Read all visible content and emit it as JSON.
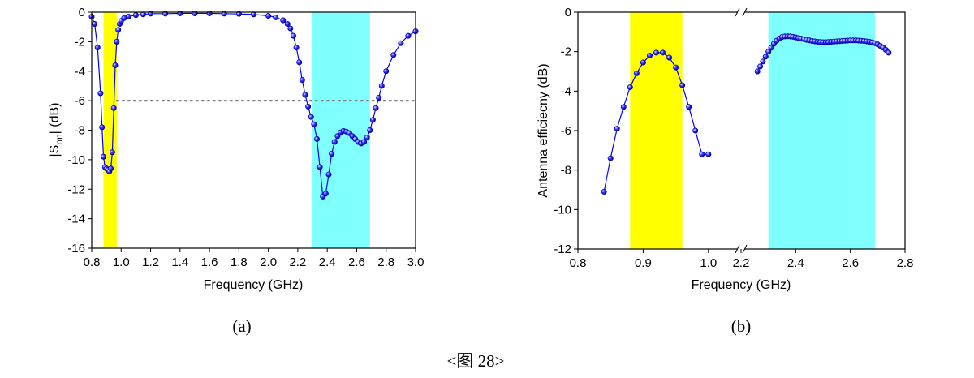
{
  "figure_caption": "<图 28>",
  "chart_data": [
    {
      "id": "a",
      "type": "scatter",
      "sublabel": "(a)",
      "xlabel": "Frequency (GHz)",
      "ylabel_main": "|S",
      "ylabel_sub": "nn",
      "ylabel_tail": "| (dB)",
      "xlim": [
        0.8,
        3.0
      ],
      "ylim": [
        -16,
        0
      ],
      "xticks": [
        "0.8",
        "1.0",
        "1.2",
        "1.4",
        "1.6",
        "1.8",
        "2.0",
        "2.2",
        "2.4",
        "2.6",
        "2.8",
        "3.0"
      ],
      "yticks": [
        "0",
        "-2",
        "-4",
        "-6",
        "-8",
        "-10",
        "-12",
        "-14",
        "-16"
      ],
      "bands": [
        {
          "from": 0.88,
          "to": 0.97,
          "color": "#ffff00"
        },
        {
          "from": 2.3,
          "to": 2.69,
          "color": "#80ffff"
        }
      ],
      "reference_line": {
        "y": -6,
        "color": "#808080"
      },
      "series_color": "#0000ff",
      "series": [
        {
          "x": [
            0.8,
            0.82,
            0.84,
            0.86,
            0.87,
            0.88,
            0.89,
            0.9,
            0.91,
            0.92,
            0.93,
            0.94,
            0.95,
            0.96,
            0.97,
            0.98,
            0.99,
            1.0,
            1.02,
            1.05,
            1.1,
            1.15,
            1.2,
            1.3,
            1.4,
            1.5,
            1.6,
            1.7,
            1.8,
            1.9,
            2.0,
            2.05,
            2.1,
            2.13,
            2.15,
            2.17,
            2.19,
            2.21,
            2.23,
            2.25,
            2.27,
            2.29,
            2.31,
            2.33,
            2.35,
            2.37,
            2.39,
            2.41,
            2.43,
            2.45,
            2.47,
            2.49,
            2.51,
            2.53,
            2.55,
            2.57,
            2.59,
            2.61,
            2.63,
            2.65,
            2.67,
            2.69,
            2.71,
            2.73,
            2.75,
            2.77,
            2.8,
            2.85,
            2.9,
            2.95,
            3.0
          ],
          "y": [
            -0.3,
            -0.8,
            -2.4,
            -5.5,
            -7.8,
            -9.8,
            -10.5,
            -10.6,
            -10.7,
            -10.8,
            -10.6,
            -9.5,
            -6.5,
            -3.6,
            -2.0,
            -1.2,
            -0.8,
            -0.6,
            -0.4,
            -0.3,
            -0.2,
            -0.15,
            -0.1,
            -0.1,
            -0.08,
            -0.08,
            -0.08,
            -0.1,
            -0.12,
            -0.15,
            -0.25,
            -0.35,
            -0.55,
            -0.8,
            -1.1,
            -1.6,
            -2.4,
            -3.4,
            -4.6,
            -5.6,
            -6.4,
            -7.1,
            -7.6,
            -8.6,
            -10.5,
            -12.5,
            -12.3,
            -11.0,
            -9.6,
            -8.8,
            -8.4,
            -8.15,
            -8.05,
            -8.1,
            -8.2,
            -8.4,
            -8.6,
            -8.8,
            -8.9,
            -8.8,
            -8.5,
            -8.0,
            -7.3,
            -6.5,
            -5.8,
            -5.0,
            -4.0,
            -2.9,
            -2.1,
            -1.6,
            -1.3
          ]
        }
      ]
    },
    {
      "id": "b",
      "type": "scatter",
      "sublabel": "(b)",
      "xlabel": "Frequency (GHz)",
      "ylabel": "Antenna efficiecny (dB)",
      "ylim": [
        -12,
        0
      ],
      "axis_break": true,
      "left_segment": {
        "xlim": [
          0.8,
          1.05
        ],
        "xticks": [
          "0.8",
          "0.9",
          "1.0"
        ]
      },
      "right_segment": {
        "xlim": [
          2.2,
          2.8
        ],
        "xticks": [
          "2.2",
          "2.4",
          "2.6",
          "2.8"
        ]
      },
      "yticks": [
        "0",
        "-2",
        "-4",
        "-6",
        "-8",
        "-10",
        "-12"
      ],
      "bands": [
        {
          "segment": "left",
          "from": 0.88,
          "to": 0.96,
          "color": "#ffff00"
        },
        {
          "segment": "right",
          "from": 2.3,
          "to": 2.69,
          "color": "#80ffff"
        }
      ],
      "series_color": "#0000ff",
      "series": [
        {
          "segment": "left",
          "x": [
            0.84,
            0.85,
            0.86,
            0.87,
            0.88,
            0.89,
            0.9,
            0.91,
            0.92,
            0.93,
            0.94,
            0.95,
            0.96,
            0.97,
            0.98,
            0.99,
            1.0
          ],
          "y": [
            -9.1,
            -7.4,
            -5.9,
            -4.8,
            -3.8,
            -3.1,
            -2.55,
            -2.2,
            -2.05,
            -2.05,
            -2.3,
            -2.8,
            -3.7,
            -4.8,
            -6.0,
            -7.2,
            -7.2
          ]
        },
        {
          "segment": "right",
          "x": [
            2.26,
            2.27,
            2.28,
            2.29,
            2.3,
            2.31,
            2.32,
            2.33,
            2.34,
            2.35,
            2.36,
            2.37,
            2.38,
            2.39,
            2.4,
            2.41,
            2.42,
            2.43,
            2.44,
            2.45,
            2.46,
            2.47,
            2.48,
            2.49,
            2.5,
            2.51,
            2.52,
            2.53,
            2.54,
            2.55,
            2.56,
            2.57,
            2.58,
            2.59,
            2.6,
            2.61,
            2.62,
            2.63,
            2.64,
            2.65,
            2.66,
            2.67,
            2.68,
            2.69,
            2.7,
            2.71,
            2.72,
            2.73,
            2.74
          ],
          "y": [
            -3.0,
            -2.75,
            -2.5,
            -2.25,
            -2.0,
            -1.8,
            -1.6,
            -1.45,
            -1.33,
            -1.26,
            -1.23,
            -1.22,
            -1.23,
            -1.25,
            -1.28,
            -1.31,
            -1.34,
            -1.37,
            -1.4,
            -1.43,
            -1.46,
            -1.48,
            -1.5,
            -1.51,
            -1.52,
            -1.52,
            -1.51,
            -1.5,
            -1.49,
            -1.48,
            -1.47,
            -1.46,
            -1.45,
            -1.44,
            -1.43,
            -1.43,
            -1.43,
            -1.44,
            -1.45,
            -1.46,
            -1.48,
            -1.5,
            -1.53,
            -1.57,
            -1.63,
            -1.71,
            -1.8,
            -1.91,
            -2.05
          ]
        }
      ]
    }
  ]
}
